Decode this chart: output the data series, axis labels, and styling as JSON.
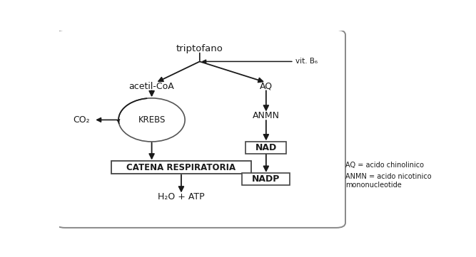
{
  "background_color": "#ffffff",
  "text_color": "#1a1a1a",
  "arrow_color": "#1a1a1a",
  "title_text": "triptofano",
  "vitb6_text": "vit. B₆",
  "acetilcoa_text": "acetil-CoA",
  "aq_text": "AQ",
  "anmn_text": "ANMN",
  "krebs_text": "KREBS",
  "co2_text": "CO₂",
  "catena_text": "CATENA RESPIRATORIA",
  "nad_text": "NAD",
  "nadp_text": "NADP",
  "h2o_atp_text": "H₂O + ATP",
  "legend_line1": "AQ = acido chinolinico",
  "legend_line2": "ANMN = acido nicotinico",
  "legend_line3": "mononucleotide",
  "fig_width": 6.67,
  "fig_height": 3.61,
  "border_color": "#888888",
  "box_color": "#444444"
}
